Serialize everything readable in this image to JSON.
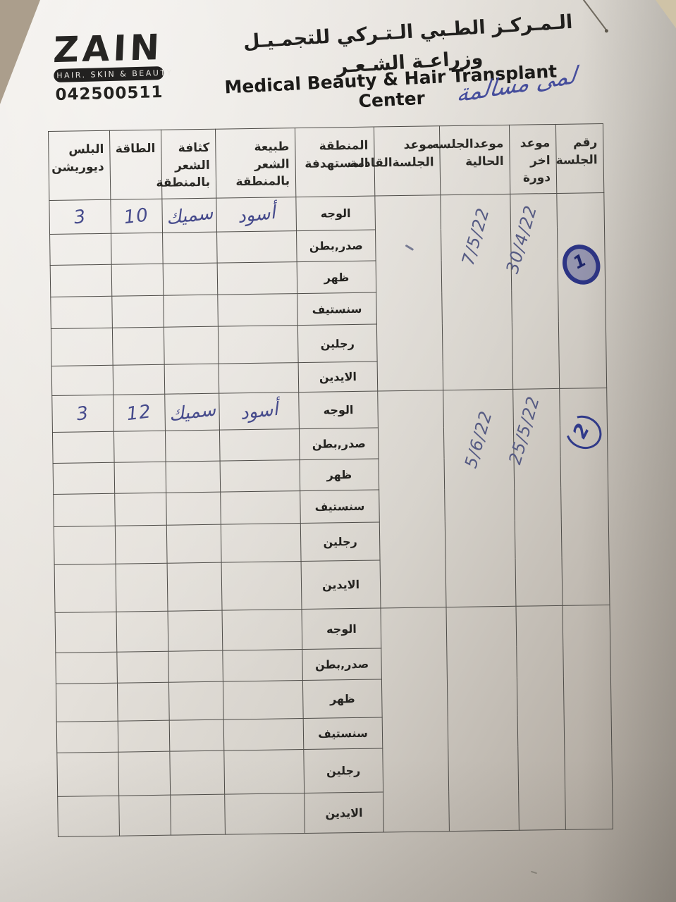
{
  "document": {
    "title_ar": "الـمـركـز الطـبي الـتـركي للتجمـيـل وزراعـة الشـعـر",
    "title_en": "Medical Beauty & Hair Transplant Center",
    "brand": {
      "name": "ZAIN",
      "tagline": "HAIR. SKIN & BEAUTY",
      "phone": "042500511"
    },
    "handwritten_name": "لمى مسالمة",
    "ink_color": "#3a4398",
    "paper_color": "#e4e0da"
  },
  "table": {
    "headers": {
      "session_no": "رقم الجلسة",
      "last_cycle": "موعد اخر دورة",
      "current_session": "موعدالجلسه الحالية",
      "next_session": "موعد الجلسةالقادمة",
      "target_area": "المنطقة المستهدفة",
      "hair_nature": "طبيعة الشعر بالمنطقة",
      "hair_density": "كثافة الشعر بالمنطقة",
      "energy": "الطاقة",
      "pulse_duration": "البلس ديوريشن"
    },
    "blocks": [
      {
        "session_no": "1",
        "last_cycle_date": "30/4/22",
        "current_session_date": "7/5/22",
        "next_session_date": "",
        "rows": [
          {
            "area": "الوجه",
            "nature": "أسود",
            "density": "سميك",
            "energy": "10",
            "pulse": "3"
          },
          {
            "area": "صدر,بطن",
            "nature": "",
            "density": "",
            "energy": "",
            "pulse": ""
          },
          {
            "area": "ظهر",
            "nature": "",
            "density": "",
            "energy": "",
            "pulse": ""
          },
          {
            "area": "سنستيف",
            "nature": "",
            "density": "",
            "energy": "",
            "pulse": ""
          },
          {
            "area": "رجلين",
            "nature": "",
            "density": "",
            "energy": "",
            "pulse": ""
          },
          {
            "area": "الايدين",
            "nature": "",
            "density": "",
            "energy": "",
            "pulse": ""
          }
        ]
      },
      {
        "session_no": "2",
        "last_cycle_date": "25/5/22",
        "current_session_date": "5/6/22",
        "next_session_date": "",
        "rows": [
          {
            "area": "الوجه",
            "nature": "أسود",
            "density": "سميك",
            "energy": "12",
            "pulse": "3"
          },
          {
            "area": "صدر,بطن",
            "nature": "",
            "density": "",
            "energy": "",
            "pulse": ""
          },
          {
            "area": "ظهر",
            "nature": "",
            "density": "",
            "energy": "",
            "pulse": ""
          },
          {
            "area": "سنستيف",
            "nature": "",
            "density": "",
            "energy": "",
            "pulse": ""
          },
          {
            "area": "رجلين",
            "nature": "",
            "density": "",
            "energy": "",
            "pulse": ""
          },
          {
            "area": "الايدين",
            "nature": "",
            "density": "",
            "energy": "",
            "pulse": ""
          }
        ]
      },
      {
        "session_no": "",
        "last_cycle_date": "",
        "current_session_date": "",
        "next_session_date": "",
        "rows": [
          {
            "area": "الوجه",
            "nature": "",
            "density": "",
            "energy": "",
            "pulse": ""
          },
          {
            "area": "صدر,بطن",
            "nature": "",
            "density": "",
            "energy": "",
            "pulse": ""
          },
          {
            "area": "ظهر",
            "nature": "",
            "density": "",
            "energy": "",
            "pulse": ""
          },
          {
            "area": "سنستيف",
            "nature": "",
            "density": "",
            "energy": "",
            "pulse": ""
          },
          {
            "area": "رجلين",
            "nature": "",
            "density": "",
            "energy": "",
            "pulse": ""
          },
          {
            "area": "الايدين",
            "nature": "",
            "density": "",
            "energy": "",
            "pulse": ""
          }
        ]
      }
    ]
  }
}
